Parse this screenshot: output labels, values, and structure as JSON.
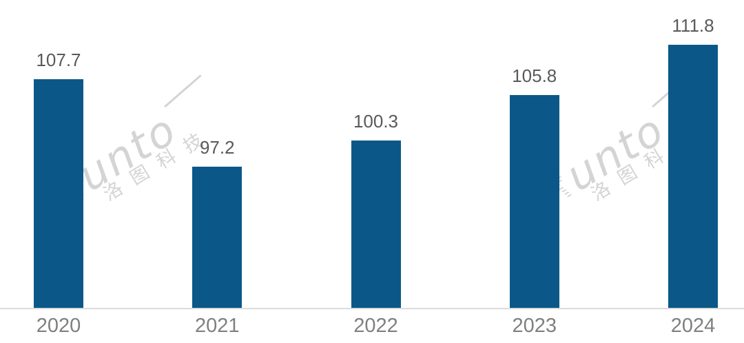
{
  "chart_data": {
    "type": "bar",
    "title": "",
    "xlabel": "",
    "ylabel": "",
    "categories": [
      "2020",
      "2021",
      "2022",
      "2023",
      "2024"
    ],
    "values": [
      107.7,
      97.2,
      100.3,
      105.8,
      111.8
    ],
    "data_labels": [
      "107.7",
      "97.2",
      "100.3",
      "105.8",
      "111.8"
    ],
    "series_count": 1,
    "ylim": [
      80.2,
      116
    ],
    "y_axis_visible": false,
    "gridlines": false,
    "legend": "none",
    "bar_color": "#0b5888",
    "value_label_color": "#595959",
    "category_label_color": "#7f7f7f",
    "axis_line_color": "#dcdcdc",
    "background": "#ffffff"
  },
  "watermark": {
    "brand_initial": "R",
    "brand_rest": "unto",
    "brand_cn": "洛图科技",
    "color": "#d4d4d4",
    "instances": 2
  }
}
